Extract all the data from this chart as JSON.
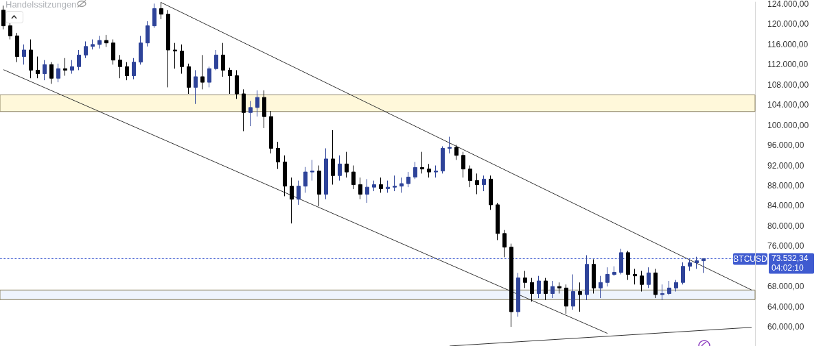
{
  "chart_data": {
    "type": "candlestick",
    "categories": [
      null,
      null,
      null,
      null,
      null,
      null,
      null,
      null,
      null,
      null,
      null,
      null,
      null,
      null,
      null,
      null,
      null,
      null,
      null,
      null,
      null,
      null,
      null,
      null,
      null,
      null,
      null,
      null,
      null,
      null,
      null,
      null,
      null,
      null,
      null,
      null,
      null,
      null,
      null,
      null,
      null,
      null,
      null,
      null,
      null,
      null,
      null,
      null,
      null,
      null,
      null,
      null,
      null,
      null,
      null,
      null,
      null,
      null,
      null,
      null,
      null,
      null,
      null,
      null,
      null,
      null,
      null,
      null,
      null,
      null,
      null,
      null,
      null,
      null,
      null,
      null,
      null,
      null,
      null,
      null,
      null,
      null,
      null,
      null,
      null,
      null,
      null,
      null,
      null,
      null,
      null,
      null,
      null,
      null,
      null,
      null,
      null,
      null,
      null,
      null,
      null,
      null,
      null,
      null,
      null,
      null,
      null,
      null,
      null,
      null
    ],
    "ohlc": [
      [
        122800,
        123700,
        119000,
        119700
      ],
      [
        119700,
        120400,
        117000,
        117700
      ],
      [
        117700,
        118300,
        112500,
        113600
      ],
      [
        113600,
        116000,
        112000,
        114900
      ],
      [
        114900,
        117000,
        109300,
        110900
      ],
      [
        110900,
        113600,
        109300,
        110200
      ],
      [
        110200,
        112900,
        108900,
        112000
      ],
      [
        112000,
        112500,
        108200,
        109300
      ],
      [
        109300,
        112200,
        108500,
        111200
      ],
      [
        111200,
        113300,
        109800,
        110900
      ],
      [
        110900,
        112900,
        110200,
        111600
      ],
      [
        111600,
        114900,
        110900,
        113900
      ],
      [
        113900,
        116600,
        113300,
        115600
      ],
      [
        115600,
        117000,
        115000,
        116000
      ],
      [
        116000,
        117700,
        115200,
        116800
      ],
      [
        116800,
        117900,
        115500,
        116300
      ],
      [
        116300,
        117000,
        112000,
        112900
      ],
      [
        112900,
        113900,
        109300,
        111600
      ],
      [
        111600,
        112500,
        108900,
        109800
      ],
      [
        109800,
        113300,
        109100,
        112500
      ],
      [
        112500,
        117700,
        112000,
        116300
      ],
      [
        116300,
        120600,
        115600,
        119700
      ],
      [
        119700,
        124100,
        119300,
        123100
      ],
      [
        123100,
        124400,
        121000,
        122000
      ],
      [
        122000,
        122800,
        107500,
        114900
      ],
      [
        114900,
        116300,
        111200,
        114700
      ],
      [
        114700,
        116000,
        110200,
        111600
      ],
      [
        111600,
        112200,
        106200,
        107500
      ],
      [
        107500,
        110900,
        104200,
        109600
      ],
      [
        109600,
        113900,
        107100,
        108500
      ],
      [
        108500,
        111600,
        107500,
        111200
      ],
      [
        111200,
        114900,
        110900,
        113900
      ],
      [
        113900,
        116300,
        109600,
        110900
      ],
      [
        110900,
        111400,
        106200,
        109800
      ],
      [
        109800,
        110900,
        105200,
        106200
      ],
      [
        106200,
        107100,
        98800,
        102500
      ],
      [
        102500,
        104800,
        99800,
        103500
      ],
      [
        103500,
        106900,
        101700,
        105500
      ],
      [
        105500,
        106900,
        99400,
        101700
      ],
      [
        101700,
        102800,
        94400,
        95400
      ],
      [
        95400,
        96700,
        91300,
        92700
      ],
      [
        92700,
        94000,
        85900,
        87900
      ],
      [
        87900,
        89600,
        80500,
        85300
      ],
      [
        85300,
        89000,
        84200,
        87900
      ],
      [
        87900,
        91700,
        86600,
        90700
      ],
      [
        90700,
        93100,
        89000,
        90900
      ],
      [
        90900,
        92000,
        83900,
        86300
      ],
      [
        86300,
        95400,
        85300,
        93300
      ],
      [
        93300,
        99000,
        88200,
        90000
      ],
      [
        90000,
        94000,
        89000,
        92300
      ],
      [
        92300,
        94700,
        89600,
        90700
      ],
      [
        90700,
        92000,
        87300,
        88200
      ],
      [
        88200,
        89600,
        85300,
        86300
      ],
      [
        86300,
        89300,
        84600,
        87700
      ],
      [
        87700,
        89000,
        86900,
        88200
      ],
      [
        88200,
        89600,
        86600,
        87400
      ],
      [
        87400,
        89000,
        86600,
        87700
      ],
      [
        87700,
        90000,
        86900,
        87900
      ],
      [
        87900,
        89600,
        86600,
        88400
      ],
      [
        88400,
        90700,
        87700,
        89700
      ],
      [
        89700,
        92700,
        89300,
        91600
      ],
      [
        91600,
        94700,
        90400,
        91300
      ],
      [
        91300,
        92300,
        89600,
        90700
      ],
      [
        90700,
        92000,
        89600,
        90900
      ],
      [
        90900,
        95800,
        90400,
        95400
      ],
      [
        95400,
        97700,
        94400,
        95600
      ],
      [
        95600,
        96100,
        93100,
        94000
      ],
      [
        94000,
        94700,
        89600,
        91300
      ],
      [
        91300,
        92000,
        87700,
        89000
      ],
      [
        89000,
        90400,
        86300,
        88200
      ],
      [
        88200,
        90000,
        86900,
        89300
      ],
      [
        89300,
        90000,
        83200,
        84200
      ],
      [
        84200,
        84600,
        77200,
        78500
      ],
      [
        78500,
        79200,
        73800,
        75800
      ],
      [
        75800,
        76500,
        60000,
        63000
      ],
      [
        63000,
        70700,
        62000,
        69700
      ],
      [
        69700,
        71100,
        67700,
        68800
      ],
      [
        68800,
        69700,
        65000,
        66600
      ],
      [
        66600,
        70100,
        65700,
        69100
      ],
      [
        69100,
        69700,
        65300,
        66600
      ],
      [
        66600,
        69100,
        65700,
        68000
      ],
      [
        68000,
        68800,
        66600,
        67700
      ],
      [
        67700,
        68400,
        62600,
        64100
      ],
      [
        64100,
        70400,
        63400,
        67000
      ],
      [
        67000,
        68800,
        63000,
        66400
      ],
      [
        66400,
        74200,
        65300,
        72400
      ],
      [
        72400,
        73400,
        66600,
        67700
      ],
      [
        67700,
        70100,
        65700,
        68800
      ],
      [
        68800,
        71800,
        68000,
        70400
      ],
      [
        70400,
        72000,
        70100,
        70800
      ],
      [
        70800,
        75500,
        70400,
        74700
      ],
      [
        74700,
        75100,
        69300,
        70400
      ],
      [
        70400,
        71500,
        68400,
        70100
      ],
      [
        70100,
        71100,
        67000,
        68400
      ],
      [
        68400,
        71800,
        67700,
        70700
      ],
      [
        70700,
        71500,
        65700,
        66400
      ],
      [
        66400,
        68400,
        65300,
        66600
      ],
      [
        66600,
        69100,
        66300,
        67700
      ],
      [
        67700,
        69300,
        67000,
        68800
      ],
      [
        68800,
        72800,
        68400,
        72000
      ],
      [
        72000,
        73400,
        71100,
        72700
      ],
      [
        72700,
        73900,
        71500,
        73100
      ],
      [
        73100,
        73600,
        70700,
        73500
      ],
      null,
      null,
      null,
      null,
      null,
      null,
      null
    ],
    "colors": [
      "#000000",
      "#000000",
      "#000000",
      "#2e4399",
      "#000000",
      "#000000",
      "#2e4399",
      "#000000",
      "#2e4399",
      "#000000",
      "#2e4399",
      "#2e4399",
      "#2e4399",
      "#2e4399",
      "#2e4399",
      "#000000",
      "#000000",
      "#000000",
      "#000000",
      "#2e4399",
      "#2e4399",
      "#2e4399",
      "#2e4399",
      "#000000",
      "#000000",
      "#000000",
      "#000000",
      "#000000",
      "#2e4399",
      "#000000",
      "#2e4399",
      "#2e4399",
      "#000000",
      "#000000",
      "#000000",
      "#000000",
      "#2e4399",
      "#2e4399",
      "#000000",
      "#000000",
      "#000000",
      "#000000",
      "#000000",
      "#2e4399",
      "#2e4399",
      "#2e4399",
      "#000000",
      "#2e4399",
      "#000000",
      "#2e4399",
      "#000000",
      "#000000",
      "#000000",
      "#2e4399",
      "#2e4399",
      "#000000",
      "#2e4399",
      "#2e4399",
      "#2e4399",
      "#2e4399",
      "#2e4399",
      "#000000",
      "#000000",
      "#2e4399",
      "#2e4399",
      "#2e4399",
      "#000000",
      "#000000",
      "#000000",
      "#000000",
      "#2e4399",
      "#000000",
      "#000000",
      "#000000",
      "#000000",
      "#2e4399",
      "#000000",
      "#000000",
      "#2e4399",
      "#000000",
      "#2e4399",
      "#000000",
      "#000000",
      "#2e4399",
      "#000000",
      "#2e4399",
      "#000000",
      "#2e4399",
      "#2e4399",
      "#2e4399",
      "#2e4399",
      "#000000",
      "#000000",
      "#000000",
      "#2e4399",
      "#000000",
      "#2e4399",
      "#2e4399",
      "#2e4399",
      "#2e4399",
      "#2e4399",
      "#2e4399",
      "#2e4399",
      null,
      null,
      null,
      null,
      null,
      null,
      null
    ],
    "series": [
      {
        "type": "line",
        "color": "#333333",
        "values": [
          null,
          null,
          null,
          null,
          null,
          null,
          null,
          null,
          null,
          null,
          null,
          null,
          null,
          null,
          null,
          null,
          null,
          null,
          null,
          null,
          null,
          null,
          null,
          124300,
          null,
          null,
          null,
          null,
          null,
          null,
          null,
          null,
          null,
          null,
          null,
          null,
          null,
          null,
          null,
          null,
          null,
          null,
          null,
          null,
          null,
          null,
          null,
          null,
          null,
          null,
          null,
          null,
          null,
          null,
          null,
          null,
          null,
          null,
          null,
          null,
          null,
          null,
          null,
          null,
          null,
          null,
          null,
          null,
          null,
          null,
          null,
          null,
          null,
          null,
          null,
          null,
          null,
          null,
          null,
          null,
          null,
          null,
          null,
          null,
          null,
          null,
          null,
          null,
          null,
          null,
          null,
          null,
          null,
          null,
          null,
          null,
          null,
          null,
          null,
          null,
          null,
          null,
          null,
          null,
          null,
          null,
          null,
          null,
          null,
          67300
        ]
      },
      {
        "type": "line",
        "color": "#333333",
        "values": [
          111000,
          null,
          null,
          null,
          null,
          null,
          null,
          null,
          null,
          null,
          null,
          null,
          null,
          null,
          null,
          null,
          null,
          null,
          null,
          null,
          null,
          null,
          null,
          null,
          null,
          null,
          null,
          null,
          null,
          null,
          null,
          null,
          null,
          null,
          null,
          null,
          null,
          null,
          null,
          null,
          null,
          null,
          null,
          null,
          null,
          null,
          null,
          null,
          null,
          null,
          null,
          null,
          null,
          null,
          null,
          null,
          null,
          null,
          null,
          null,
          null,
          null,
          null,
          null,
          null,
          null,
          null,
          null,
          null,
          null,
          null,
          null,
          null,
          null,
          null,
          null,
          null,
          null,
          null,
          null,
          null,
          null,
          null,
          null,
          null,
          null,
          null,
          null,
          58700,
          null,
          null,
          null,
          null,
          null,
          null,
          null,
          null,
          null,
          null,
          null,
          null,
          null,
          null,
          null,
          null,
          null,
          null,
          null,
          null,
          null
        ]
      },
      {
        "type": "line",
        "color": "#333333",
        "values": [
          null,
          null,
          null,
          null,
          null,
          null,
          null,
          null,
          null,
          null,
          null,
          null,
          null,
          null,
          null,
          null,
          null,
          null,
          null,
          null,
          null,
          null,
          null,
          null,
          null,
          null,
          null,
          null,
          null,
          null,
          null,
          null,
          null,
          null,
          null,
          null,
          null,
          null,
          null,
          null,
          null,
          null,
          null,
          null,
          null,
          null,
          null,
          null,
          null,
          null,
          null,
          null,
          null,
          null,
          null,
          null,
          null,
          null,
          null,
          null,
          null,
          null,
          null,
          null,
          null,
          56200,
          null,
          null,
          null,
          null,
          null,
          null,
          null,
          null,
          null,
          null,
          null,
          null,
          null,
          null,
          null,
          null,
          null,
          null,
          null,
          null,
          null,
          null,
          null,
          null,
          null,
          null,
          null,
          null,
          null,
          null,
          null,
          null,
          null,
          null,
          null,
          null,
          null,
          null,
          null,
          null,
          null,
          null,
          null,
          59900
        ]
      }
    ],
    "ref_lines": [
      {
        "axis": "y",
        "value": 73532.34,
        "label": "73.532,34",
        "color": "#3f5bd0",
        "line_style": "dotted"
      }
    ],
    "bands": [
      {
        "axis": "y",
        "from": 102700,
        "to": 106000,
        "color": "#fff8da"
      },
      {
        "axis": "y",
        "from": 65400,
        "to": 67300,
        "color": "#eef4fd"
      }
    ],
    "annotations": [
      "Handelssitzungen",
      "BTCUSD",
      "04:02:10"
    ],
    "ylim": [
      56200,
      124400
    ],
    "yticks": [
      {
        "value": 60000,
        "label": "60.000,00"
      },
      {
        "value": 64000,
        "label": "64.000,00"
      },
      {
        "value": 68000,
        "label": "68.000,00"
      },
      {
        "value": 76000,
        "label": "76.000,00"
      },
      {
        "value": 80000,
        "label": "80.000,00"
      },
      {
        "value": 84000,
        "label": "84.000,00"
      },
      {
        "value": 88000,
        "label": "88.000,00"
      },
      {
        "value": 92000,
        "label": "92.000,00"
      },
      {
        "value": 96000,
        "label": "96.000,00"
      },
      {
        "value": 100000,
        "label": "100.000,00"
      },
      {
        "value": 104000,
        "label": "104.000,00"
      },
      {
        "value": 108000,
        "label": "108.000,00"
      },
      {
        "value": 112000,
        "label": "112.000,00"
      },
      {
        "value": 116000,
        "label": "116.000,00"
      },
      {
        "value": 120000,
        "label": "120.000,00"
      },
      {
        "value": 124000,
        "label": "124.000,00"
      }
    ],
    "tick_labels": "y",
    "grid": false
  }
}
